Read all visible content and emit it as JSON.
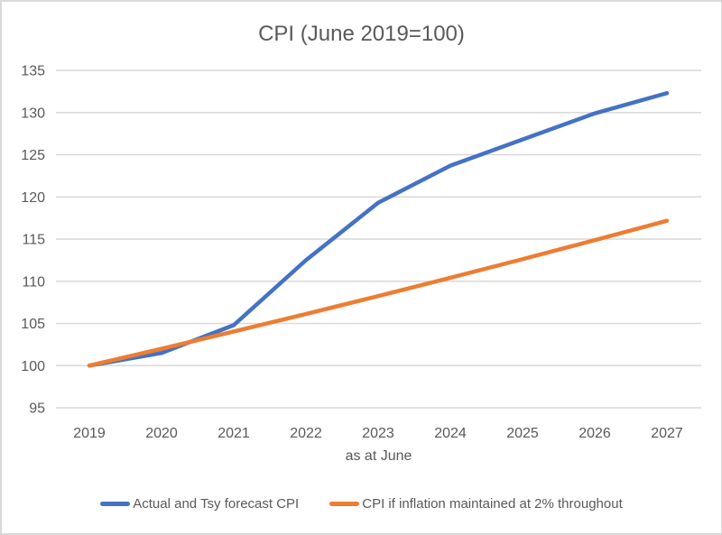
{
  "chart_data": {
    "type": "line",
    "title": "CPI (June 2019=100)",
    "xlabel": "as at June",
    "ylabel": "",
    "categories": [
      "2019",
      "2020",
      "2021",
      "2022",
      "2023",
      "2024",
      "2025",
      "2026",
      "2027"
    ],
    "yticks": [
      95,
      100,
      105,
      110,
      115,
      120,
      125,
      130,
      135
    ],
    "ylim": [
      95,
      135
    ],
    "grid": "horizontal",
    "legend_position": "bottom",
    "series": [
      {
        "name": "Actual and Tsy forecast CPI",
        "color": "#4472C4",
        "values": [
          100,
          101.5,
          104.8,
          112.5,
          119.3,
          123.7,
          126.8,
          129.9,
          132.3
        ]
      },
      {
        "name": "CPI if inflation maintained at 2% throughout",
        "color": "#ED7D31",
        "values": [
          100,
          102,
          104.04,
          106.12,
          108.24,
          110.41,
          112.62,
          114.87,
          117.17
        ]
      }
    ],
    "colors": {
      "grid": "#D9D9D9",
      "axis": "#D9D9D9",
      "text": "#595959",
      "border": "#D9D9D9",
      "background": "#FFFFFF"
    }
  }
}
